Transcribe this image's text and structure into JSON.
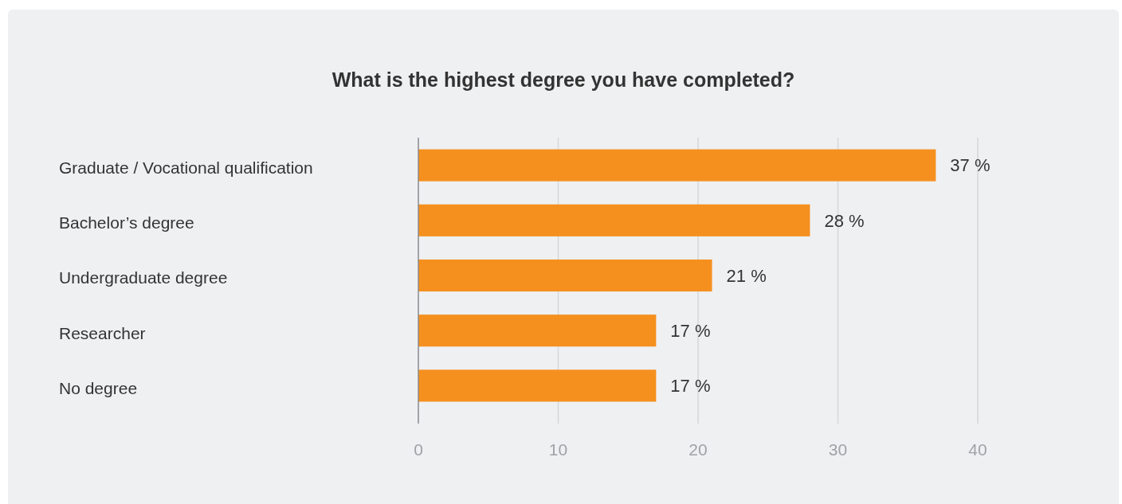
{
  "chart_data": {
    "type": "bar",
    "orientation": "horizontal",
    "title": "What is the highest degree you have completed?",
    "categories": [
      "Graduate / Vocational qualification",
      "Bachelor’s degree",
      "Undergraduate degree",
      "Researcher",
      "No degree"
    ],
    "values": [
      37,
      28,
      21,
      17,
      17
    ],
    "color": "#f5901f",
    "value_labels": [
      "37 %",
      "28 %",
      "21 %",
      "17 %",
      "17 %"
    ],
    "xlim": [
      0,
      40
    ],
    "xticks": [
      0,
      10,
      20,
      30,
      40
    ],
    "grid": "x"
  }
}
